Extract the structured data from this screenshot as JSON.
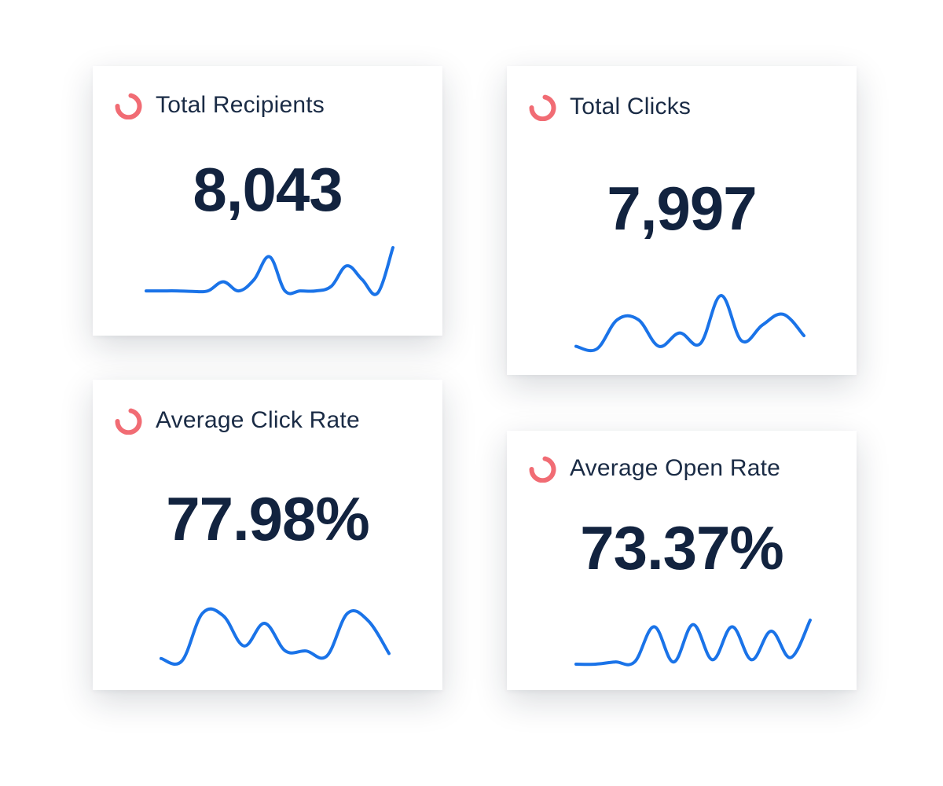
{
  "colors": {
    "brand": "#f16c74",
    "line": "#1a73e8",
    "text": "#12233f"
  },
  "cards": {
    "recipients": {
      "icon": "brand-ring-icon",
      "title": "Total Recipients",
      "value": "8,043",
      "trend": [
        0.05,
        0.05,
        0.05,
        0.04,
        0.05,
        0.25,
        0.05,
        0.3,
        0.8,
        0.05,
        0.05,
        0.05,
        0.15,
        0.6,
        0.3,
        0.0,
        1.0
      ]
    },
    "clicks": {
      "icon": "brand-ring-icon",
      "title": "Total Clicks",
      "value": "7,997",
      "trend": [
        0.05,
        0.0,
        0.55,
        0.55,
        0.05,
        0.3,
        0.1,
        1.0,
        0.15,
        0.45,
        0.65,
        0.25
      ]
    },
    "click_rate": {
      "icon": "brand-ring-icon",
      "title": "Average Click Rate",
      "value": "77.98%",
      "trend": [
        0.05,
        0.0,
        0.95,
        0.9,
        0.3,
        0.75,
        0.2,
        0.2,
        0.1,
        0.95,
        0.8,
        0.15
      ]
    },
    "open_rate": {
      "icon": "brand-ring-icon",
      "title": "Average Open Rate",
      "value": "73.37%",
      "trend": [
        0.0,
        0.0,
        0.05,
        0.05,
        0.85,
        0.05,
        0.9,
        0.1,
        0.85,
        0.1,
        0.75,
        0.15,
        1.0
      ]
    }
  }
}
